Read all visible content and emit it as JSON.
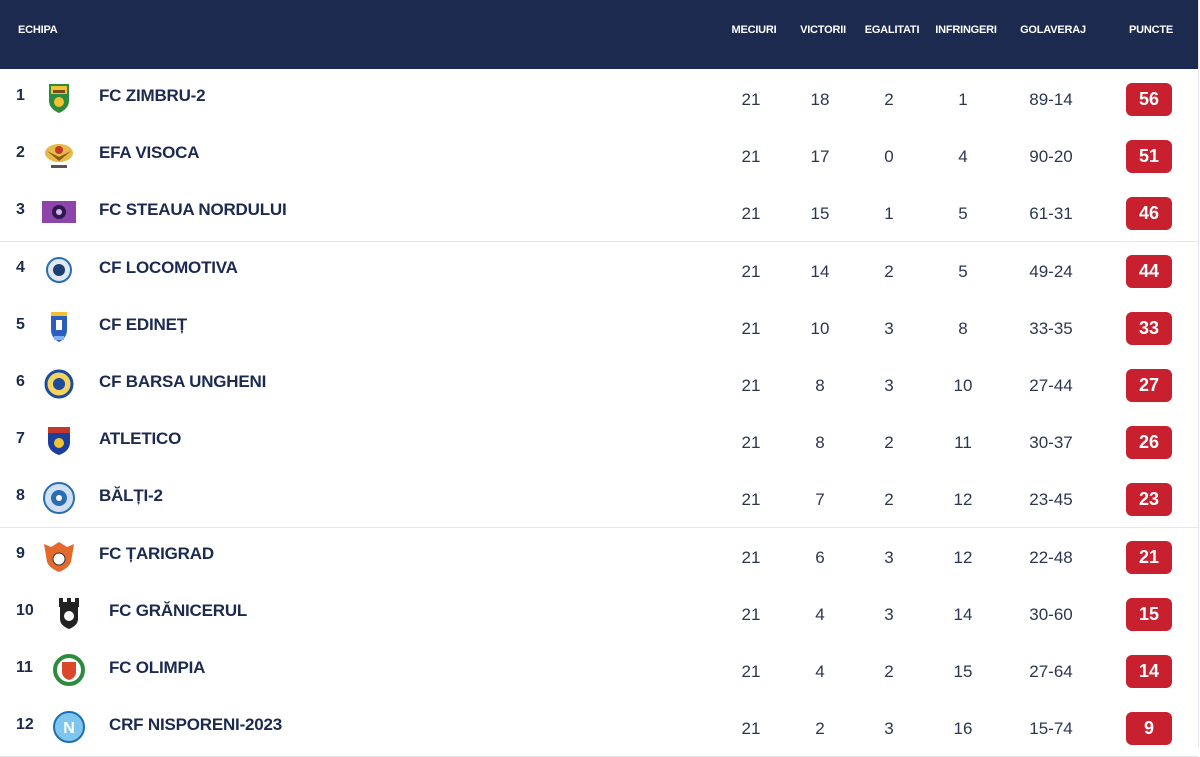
{
  "header": {
    "team": "ECHIPA",
    "played": "MECIURI",
    "won": "VICTORII",
    "drawn": "EGALITATI",
    "lost": "INFRINGERI",
    "goals": "GOLAVERAJ",
    "points": "PUNCTE"
  },
  "rows": [
    {
      "pos": "1",
      "team": "FC ZIMBRU-2",
      "played": "21",
      "won": "18",
      "drawn": "2",
      "lost": "1",
      "goals": "89-14",
      "points": "56",
      "logo": "zimbru-crest-icon"
    },
    {
      "pos": "2",
      "team": "EFA VISOCA",
      "played": "21",
      "won": "17",
      "drawn": "0",
      "lost": "4",
      "goals": "90-20",
      "points": "51",
      "logo": "visoca-eagle-icon"
    },
    {
      "pos": "3",
      "team": "FC STEAUA NORDULUI",
      "played": "21",
      "won": "15",
      "drawn": "1",
      "lost": "5",
      "goals": "61-31",
      "points": "46",
      "logo": "steaua-nordului-icon"
    },
    {
      "pos": "4",
      "team": "CF LOCOMOTIVA",
      "played": "21",
      "won": "14",
      "drawn": "2",
      "lost": "5",
      "goals": "49-24",
      "points": "44",
      "logo": "locomotiva-ball-icon"
    },
    {
      "pos": "5",
      "team": "CF EDINEȚ",
      "played": "21",
      "won": "10",
      "drawn": "3",
      "lost": "8",
      "goals": "33-35",
      "points": "33",
      "logo": "edinet-crest-icon"
    },
    {
      "pos": "6",
      "team": "CF BARSA UNGHENI",
      "played": "21",
      "won": "8",
      "drawn": "3",
      "lost": "10",
      "goals": "27-44",
      "points": "27",
      "logo": "barsa-ungheni-icon"
    },
    {
      "pos": "7",
      "team": "ATLETICO",
      "played": "21",
      "won": "8",
      "drawn": "2",
      "lost": "11",
      "goals": "30-37",
      "points": "26",
      "logo": "atletico-shield-icon"
    },
    {
      "pos": "8",
      "team": "BĂLȚI-2",
      "played": "21",
      "won": "7",
      "drawn": "2",
      "lost": "12",
      "goals": "23-45",
      "points": "23",
      "logo": "balti-round-icon"
    },
    {
      "pos": "9",
      "team": "FC ȚARIGRAD",
      "played": "21",
      "won": "6",
      "drawn": "3",
      "lost": "12",
      "goals": "22-48",
      "points": "21",
      "logo": "tarigrad-crest-icon"
    },
    {
      "pos": "10",
      "team": "FC GRĂNICERUL",
      "played": "21",
      "won": "4",
      "drawn": "3",
      "lost": "14",
      "goals": "30-60",
      "points": "15",
      "logo": "granicerul-tower-icon"
    },
    {
      "pos": "11",
      "team": "FC OLIMPIA",
      "played": "21",
      "won": "4",
      "drawn": "2",
      "lost": "15",
      "goals": "27-64",
      "points": "14",
      "logo": "olimpia-wreath-icon"
    },
    {
      "pos": "12",
      "team": "CRF NISPORENI-2023",
      "played": "21",
      "won": "2",
      "drawn": "3",
      "lost": "16",
      "goals": "15-74",
      "points": "9",
      "logo": "nisporeni-round-icon"
    }
  ],
  "colors": {
    "header_bg": "#1c2a4f",
    "points_bg": "#c8202f",
    "text": "#1c2a4f"
  }
}
